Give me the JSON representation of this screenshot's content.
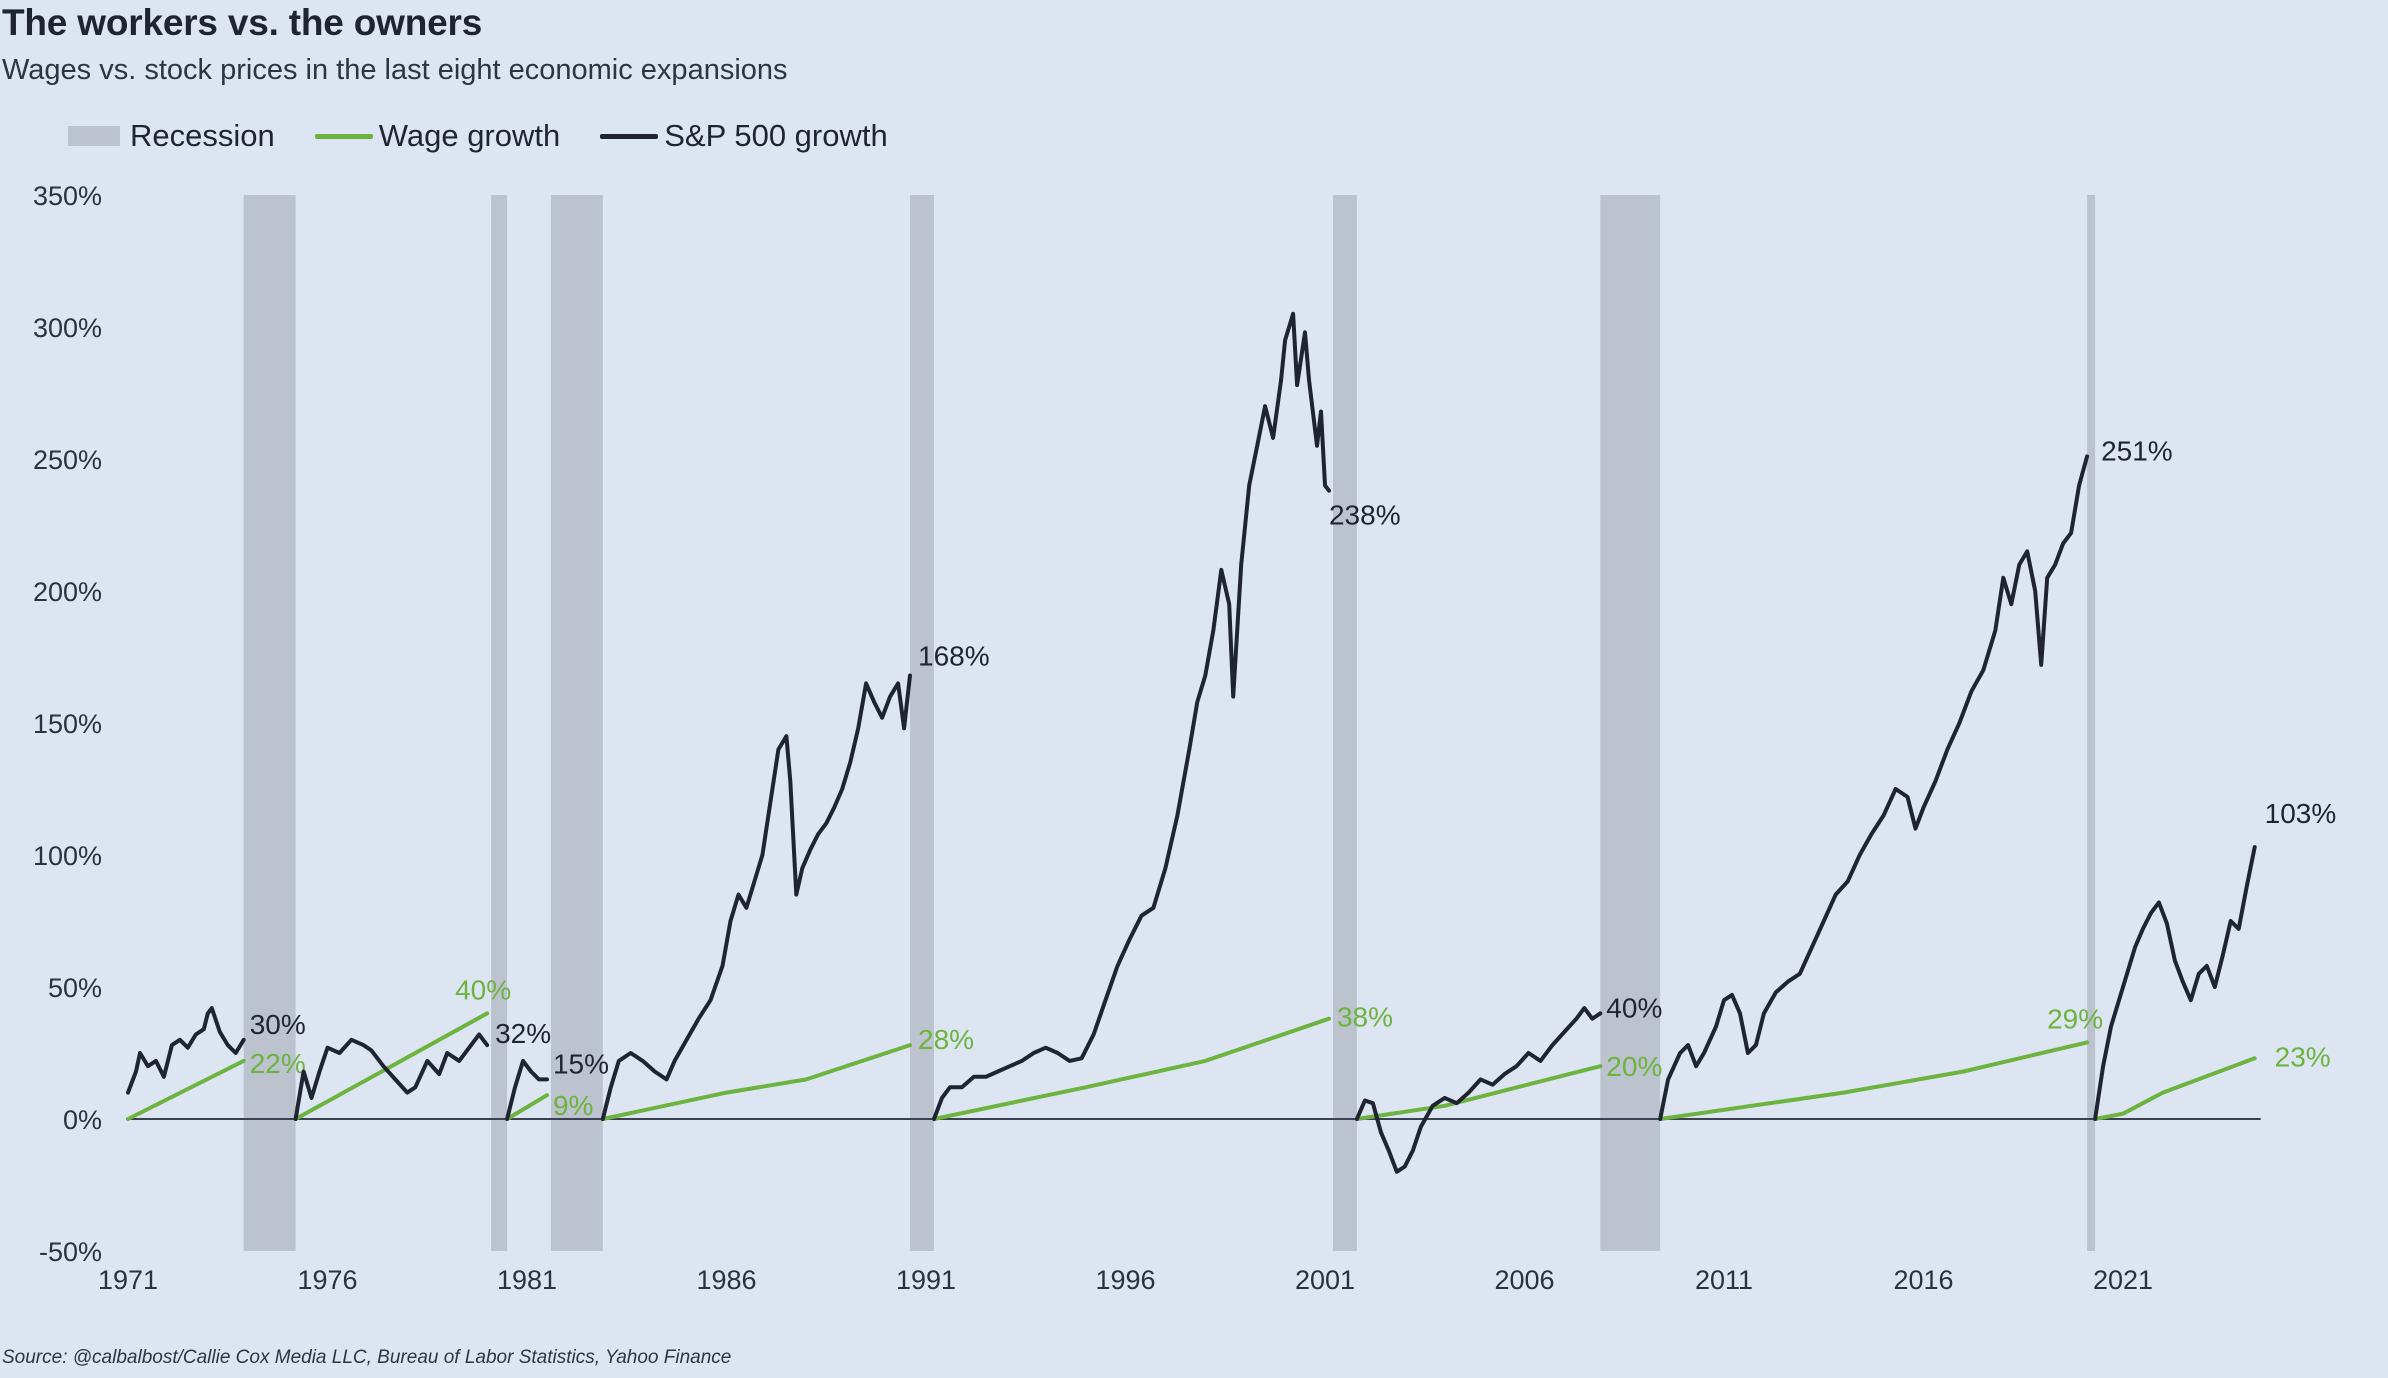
{
  "title": "The workers vs. the owners",
  "subtitle": "Wages vs. stock prices in the last eight economic expansions",
  "source": "Source: @calbalbost/Callie Cox Media LLC, Bureau of Labor Statistics, Yahoo Finance",
  "legend": {
    "recession": "Recession",
    "wage": "Wage growth",
    "sp500": "S&P 500 growth"
  },
  "colors": {
    "background": "#dde5f2",
    "recession": "#bcc3ce",
    "wage": "#6db33f",
    "wage_label": "#6db33f",
    "sp500": "#1f2430",
    "zero_line": "#3b4150"
  },
  "chart_data": {
    "type": "line",
    "title": "The workers vs. the owners",
    "subtitle": "Wages vs. stock prices in the last eight economic expansions",
    "xlabel": "",
    "ylabel": "",
    "xlim": [
      1971,
      2024.4
    ],
    "ylim": [
      -50,
      350
    ],
    "x_ticks": [
      1971,
      1976,
      1981,
      1986,
      1991,
      1996,
      2001,
      2006,
      2011,
      2016,
      2021
    ],
    "y_ticks": [
      -50,
      0,
      50,
      100,
      150,
      200,
      250,
      300,
      350
    ],
    "y_tick_labels": [
      "-50%",
      "0%",
      "50%",
      "100%",
      "150%",
      "200%",
      "250%",
      "300%",
      "350%"
    ],
    "legend_position": "top-left",
    "grid": false,
    "recessions": [
      [
        1973.9,
        1975.2
      ],
      [
        1980.1,
        1980.5
      ],
      [
        1981.6,
        1982.9
      ],
      [
        1990.6,
        1991.2
      ],
      [
        2001.2,
        2001.8
      ],
      [
        2007.9,
        2009.4
      ],
      [
        2020.1,
        2020.3
      ]
    ],
    "expansions": [
      {
        "sp500": [
          [
            1971.0,
            10
          ],
          [
            1971.2,
            18
          ],
          [
            1971.3,
            25
          ],
          [
            1971.5,
            20
          ],
          [
            1971.7,
            22
          ],
          [
            1971.9,
            16
          ],
          [
            1972.1,
            28
          ],
          [
            1972.3,
            30
          ],
          [
            1972.5,
            27
          ],
          [
            1972.7,
            32
          ],
          [
            1972.9,
            34
          ],
          [
            1973.0,
            40
          ],
          [
            1973.1,
            42
          ],
          [
            1973.3,
            33
          ],
          [
            1973.5,
            28
          ],
          [
            1973.7,
            25
          ],
          [
            1973.9,
            30
          ]
        ],
        "wage": [
          [
            1971.0,
            0
          ],
          [
            1973.9,
            22
          ]
        ],
        "sp500_label": "30%",
        "wage_label": "22%"
      },
      {
        "sp500": [
          [
            1975.2,
            0
          ],
          [
            1975.4,
            18
          ],
          [
            1975.6,
            8
          ],
          [
            1975.8,
            18
          ],
          [
            1976.0,
            27
          ],
          [
            1976.3,
            25
          ],
          [
            1976.6,
            30
          ],
          [
            1976.9,
            28
          ],
          [
            1977.1,
            26
          ],
          [
            1977.4,
            20
          ],
          [
            1977.7,
            15
          ],
          [
            1978.0,
            10
          ],
          [
            1978.2,
            12
          ],
          [
            1978.5,
            22
          ],
          [
            1978.8,
            17
          ],
          [
            1979.0,
            25
          ],
          [
            1979.3,
            22
          ],
          [
            1979.6,
            28
          ],
          [
            1979.8,
            32
          ],
          [
            1980.0,
            28
          ]
        ],
        "wage": [
          [
            1975.2,
            0
          ],
          [
            1980.0,
            40
          ]
        ],
        "sp500_label": "32%",
        "wage_label": "40%"
      },
      {
        "sp500": [
          [
            1980.5,
            0
          ],
          [
            1980.7,
            12
          ],
          [
            1980.9,
            22
          ],
          [
            1981.1,
            18
          ],
          [
            1981.3,
            15
          ],
          [
            1981.5,
            15
          ]
        ],
        "wage": [
          [
            1980.5,
            0
          ],
          [
            1981.5,
            9
          ]
        ],
        "sp500_label": "15%",
        "wage_label": "9%"
      },
      {
        "sp500": [
          [
            1982.9,
            0
          ],
          [
            1983.1,
            12
          ],
          [
            1983.3,
            22
          ],
          [
            1983.6,
            25
          ],
          [
            1983.9,
            22
          ],
          [
            1984.2,
            18
          ],
          [
            1984.5,
            15
          ],
          [
            1984.7,
            22
          ],
          [
            1985.0,
            30
          ],
          [
            1985.3,
            38
          ],
          [
            1985.6,
            45
          ],
          [
            1985.9,
            58
          ],
          [
            1986.1,
            75
          ],
          [
            1986.3,
            85
          ],
          [
            1986.5,
            80
          ],
          [
            1986.7,
            90
          ],
          [
            1986.9,
            100
          ],
          [
            1987.1,
            120
          ],
          [
            1987.3,
            140
          ],
          [
            1987.5,
            145
          ],
          [
            1987.6,
            128
          ],
          [
            1987.75,
            85
          ],
          [
            1987.9,
            95
          ],
          [
            1988.1,
            102
          ],
          [
            1988.3,
            108
          ],
          [
            1988.5,
            112
          ],
          [
            1988.7,
            118
          ],
          [
            1988.9,
            125
          ],
          [
            1989.1,
            135
          ],
          [
            1989.3,
            148
          ],
          [
            1989.5,
            165
          ],
          [
            1989.7,
            158
          ],
          [
            1989.9,
            152
          ],
          [
            1990.1,
            160
          ],
          [
            1990.3,
            165
          ],
          [
            1990.45,
            148
          ],
          [
            1990.6,
            168
          ]
        ],
        "wage": [
          [
            1982.9,
            0
          ],
          [
            1986.0,
            10
          ],
          [
            1988.0,
            15
          ],
          [
            1990.6,
            28
          ]
        ],
        "sp500_label": "168%",
        "wage_label": "28%"
      },
      {
        "sp500": [
          [
            1991.2,
            0
          ],
          [
            1991.4,
            8
          ],
          [
            1991.6,
            12
          ],
          [
            1991.9,
            12
          ],
          [
            1992.2,
            16
          ],
          [
            1992.5,
            16
          ],
          [
            1992.8,
            18
          ],
          [
            1993.1,
            20
          ],
          [
            1993.4,
            22
          ],
          [
            1993.7,
            25
          ],
          [
            1994.0,
            27
          ],
          [
            1994.3,
            25
          ],
          [
            1994.6,
            22
          ],
          [
            1994.9,
            23
          ],
          [
            1995.2,
            32
          ],
          [
            1995.5,
            45
          ],
          [
            1995.8,
            58
          ],
          [
            1996.1,
            68
          ],
          [
            1996.4,
            77
          ],
          [
            1996.7,
            80
          ],
          [
            1997.0,
            95
          ],
          [
            1997.3,
            115
          ],
          [
            1997.6,
            140
          ],
          [
            1997.8,
            158
          ],
          [
            1998.0,
            168
          ],
          [
            1998.2,
            185
          ],
          [
            1998.4,
            208
          ],
          [
            1998.6,
            195
          ],
          [
            1998.7,
            160
          ],
          [
            1998.9,
            210
          ],
          [
            1999.1,
            240
          ],
          [
            1999.3,
            255
          ],
          [
            1999.5,
            270
          ],
          [
            1999.7,
            258
          ],
          [
            1999.9,
            280
          ],
          [
            2000.0,
            295
          ],
          [
            2000.2,
            305
          ],
          [
            2000.3,
            278
          ],
          [
            2000.5,
            298
          ],
          [
            2000.6,
            280
          ],
          [
            2000.8,
            255
          ],
          [
            2000.9,
            268
          ],
          [
            2001.0,
            240
          ],
          [
            2001.1,
            238
          ]
        ],
        "wage": [
          [
            1991.2,
            0
          ],
          [
            1995.0,
            12
          ],
          [
            1998.0,
            22
          ],
          [
            2001.1,
            38
          ]
        ],
        "sp500_label": "238%",
        "wage_label": "38%"
      },
      {
        "sp500": [
          [
            2001.8,
            0
          ],
          [
            2002.0,
            7
          ],
          [
            2002.2,
            6
          ],
          [
            2002.4,
            -5
          ],
          [
            2002.6,
            -12
          ],
          [
            2002.8,
            -20
          ],
          [
            2003.0,
            -18
          ],
          [
            2003.2,
            -12
          ],
          [
            2003.4,
            -3
          ],
          [
            2003.7,
            5
          ],
          [
            2004.0,
            8
          ],
          [
            2004.3,
            6
          ],
          [
            2004.6,
            10
          ],
          [
            2004.9,
            15
          ],
          [
            2005.2,
            13
          ],
          [
            2005.5,
            17
          ],
          [
            2005.8,
            20
          ],
          [
            2006.1,
            25
          ],
          [
            2006.4,
            22
          ],
          [
            2006.7,
            28
          ],
          [
            2007.0,
            33
          ],
          [
            2007.3,
            38
          ],
          [
            2007.5,
            42
          ],
          [
            2007.7,
            38
          ],
          [
            2007.9,
            40
          ]
        ],
        "wage": [
          [
            2001.8,
            0
          ],
          [
            2004.0,
            5
          ],
          [
            2007.9,
            20
          ]
        ],
        "sp500_label": "40%",
        "wage_label": "20%"
      },
      {
        "sp500": [
          [
            2009.4,
            0
          ],
          [
            2009.6,
            15
          ],
          [
            2009.9,
            25
          ],
          [
            2010.1,
            28
          ],
          [
            2010.3,
            20
          ],
          [
            2010.5,
            25
          ],
          [
            2010.8,
            35
          ],
          [
            2011.0,
            45
          ],
          [
            2011.2,
            47
          ],
          [
            2011.4,
            40
          ],
          [
            2011.6,
            25
          ],
          [
            2011.8,
            28
          ],
          [
            2012.0,
            40
          ],
          [
            2012.3,
            48
          ],
          [
            2012.6,
            52
          ],
          [
            2012.9,
            55
          ],
          [
            2013.2,
            65
          ],
          [
            2013.5,
            75
          ],
          [
            2013.8,
            85
          ],
          [
            2014.1,
            90
          ],
          [
            2014.4,
            100
          ],
          [
            2014.7,
            108
          ],
          [
            2015.0,
            115
          ],
          [
            2015.3,
            125
          ],
          [
            2015.6,
            122
          ],
          [
            2015.8,
            110
          ],
          [
            2016.0,
            118
          ],
          [
            2016.3,
            128
          ],
          [
            2016.6,
            140
          ],
          [
            2016.9,
            150
          ],
          [
            2017.2,
            162
          ],
          [
            2017.5,
            170
          ],
          [
            2017.8,
            185
          ],
          [
            2018.0,
            205
          ],
          [
            2018.2,
            195
          ],
          [
            2018.4,
            210
          ],
          [
            2018.6,
            215
          ],
          [
            2018.8,
            200
          ],
          [
            2018.95,
            172
          ],
          [
            2019.1,
            205
          ],
          [
            2019.3,
            210
          ],
          [
            2019.5,
            218
          ],
          [
            2019.7,
            222
          ],
          [
            2019.9,
            240
          ],
          [
            2020.1,
            251
          ]
        ],
        "wage": [
          [
            2009.4,
            0
          ],
          [
            2014.0,
            10
          ],
          [
            2017.0,
            18
          ],
          [
            2020.1,
            29
          ]
        ],
        "sp500_label": "251%",
        "wage_label": "29%"
      },
      {
        "sp500": [
          [
            2020.3,
            0
          ],
          [
            2020.5,
            20
          ],
          [
            2020.7,
            35
          ],
          [
            2020.9,
            45
          ],
          [
            2021.1,
            55
          ],
          [
            2021.3,
            65
          ],
          [
            2021.5,
            72
          ],
          [
            2021.7,
            78
          ],
          [
            2021.9,
            82
          ],
          [
            2022.1,
            74
          ],
          [
            2022.3,
            60
          ],
          [
            2022.5,
            52
          ],
          [
            2022.7,
            45
          ],
          [
            2022.9,
            55
          ],
          [
            2023.1,
            58
          ],
          [
            2023.3,
            50
          ],
          [
            2023.5,
            62
          ],
          [
            2023.7,
            75
          ],
          [
            2023.9,
            72
          ],
          [
            2024.1,
            88
          ],
          [
            2024.3,
            103
          ]
        ],
        "wage": [
          [
            2020.3,
            0
          ],
          [
            2021.0,
            2
          ],
          [
            2022.0,
            10
          ],
          [
            2024.3,
            23
          ]
        ],
        "sp500_label": "103%",
        "wage_label": "23%"
      }
    ]
  }
}
